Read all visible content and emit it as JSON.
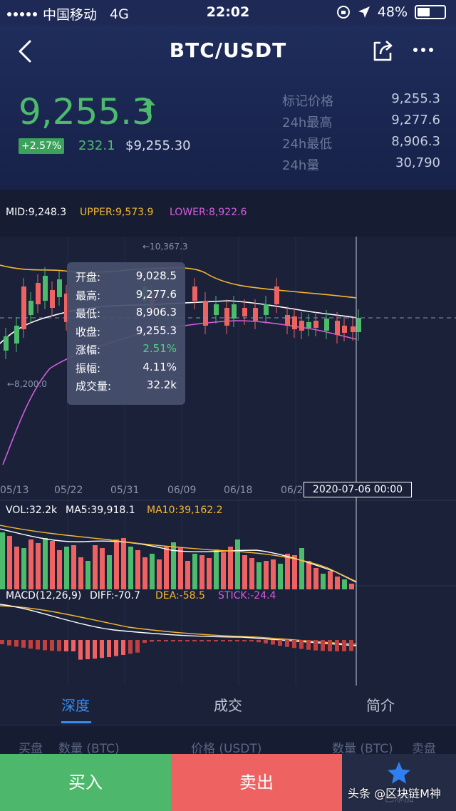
{
  "status_bar": {
    "carrier": "中国移动",
    "network": "4G",
    "time": "22:02",
    "battery": "48%"
  },
  "nav": {
    "title": "BTC/USDT"
  },
  "ticker": {
    "price": "9,255.3",
    "change_pct": "+2.57%",
    "change_abs": "232.1",
    "price_usd": "$9,255.30",
    "stats": [
      {
        "label": "标记价格",
        "value": "9,255.3"
      },
      {
        "label": "24h最高",
        "value": "9,277.6"
      },
      {
        "label": "24h最低",
        "value": "8,906.3"
      },
      {
        "label": "24h量",
        "value": "30,790"
      }
    ]
  },
  "boll": {
    "mid": "MID:9,248.3",
    "upper": "UPPER:9,573.9",
    "lower": "LOWER:8,922.6"
  },
  "chart_labels": {
    "high_marker": "10,367.3",
    "low_marker": "8,200.0",
    "x_ticks": [
      "05/13",
      "05/22",
      "05/31",
      "06/09",
      "06/18",
      "06/2"
    ],
    "crosshair_time": "2020-07-06 00:00"
  },
  "tooltip": [
    {
      "label": "开盘:",
      "value": "9,028.5"
    },
    {
      "label": "最高:",
      "value": "9,277.6"
    },
    {
      "label": "最低:",
      "value": "8,906.3"
    },
    {
      "label": "收盘:",
      "value": "9,255.3"
    },
    {
      "label": "涨幅:",
      "value": "2.51%"
    },
    {
      "label": "振幅:",
      "value": "4.11%"
    },
    {
      "label": "成交量:",
      "value": "32.2k"
    }
  ],
  "volume": {
    "vol": "VOL:32.2k",
    "ma5": "MA5:39,918.1",
    "ma10": "MA10:39,162.2"
  },
  "macd": {
    "name": "MACD(12,26,9)",
    "diff": "DIFF:-70.7",
    "dea": "DEA:-58.5",
    "stick": "STICK:-24.4"
  },
  "tabs": [
    "深度",
    "成交",
    "简介"
  ],
  "depth_header": {
    "bid": "买盘",
    "qty_left": "数量 (BTC)",
    "price": "价格 (USDT)",
    "qty_right": "数量 (BTC)",
    "ask": "卖盘"
  },
  "actions": {
    "buy": "买入",
    "sell": "卖出",
    "favorite": "已添加"
  },
  "watermark": "头条 @区块链M神",
  "colors": {
    "up": "#4cbb6c",
    "down": "#ef6262",
    "accent": "#3a8cf0",
    "upper": "#f5b731",
    "lower": "#d65ce0"
  }
}
